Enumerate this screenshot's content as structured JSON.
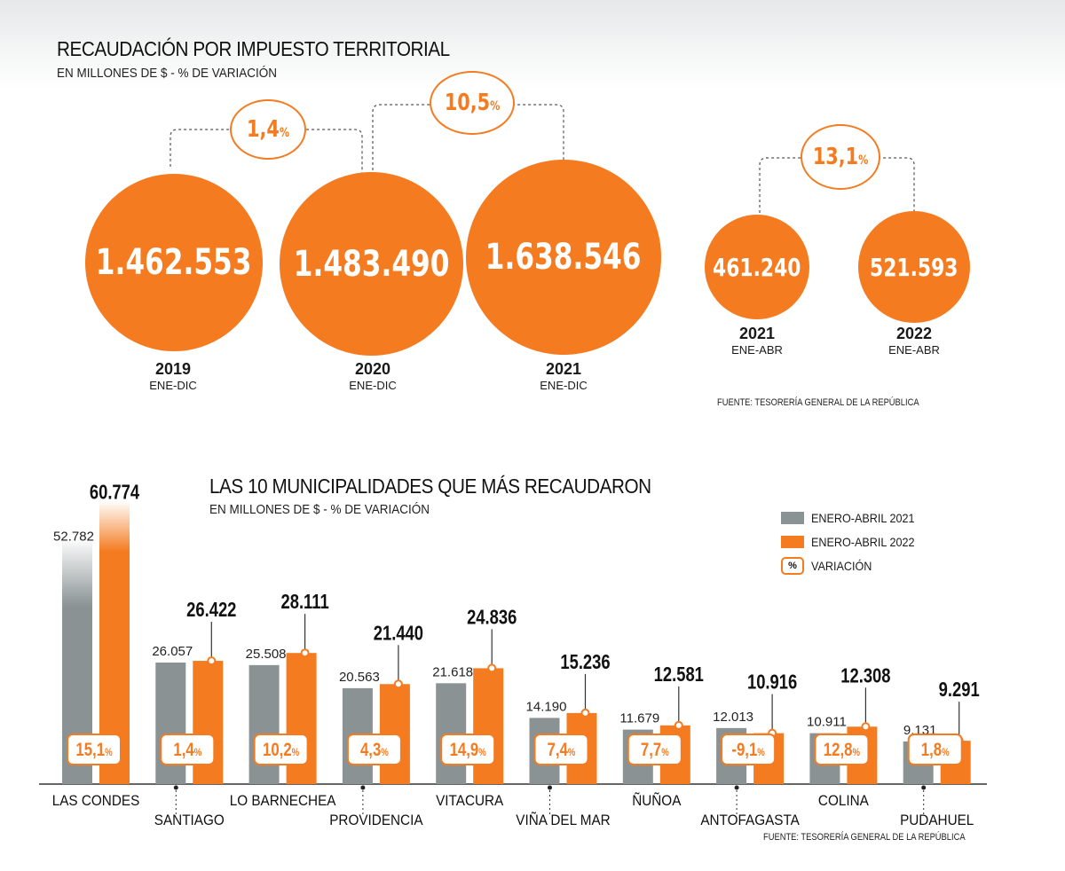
{
  "top": {
    "title": "RECAUDACIÓN POR IMPUESTO TERRITORIAL",
    "subtitle": "EN MILLONES DE $ - % DE VARIACIÓN",
    "bubbles": [
      {
        "value": "1.462.553",
        "year": "2019",
        "period": "ENE-DIC"
      },
      {
        "value": "1.483.490",
        "year": "2020",
        "period": "ENE-DIC"
      },
      {
        "value": "1.638.546",
        "year": "2021",
        "period": "ENE-DIC"
      },
      {
        "value": "461.240",
        "year": "2021",
        "period": "ENE-ABR"
      },
      {
        "value": "521.593",
        "year": "2022",
        "period": "ENE-ABR"
      }
    ],
    "variations": [
      "1,4",
      "10,5",
      "13,1"
    ],
    "pct_sign": "%",
    "source": "FUENTE: TESORERÍA GENERAL DE LA REPÚBLICA"
  },
  "bottom": {
    "title": "LAS 10 MUNICIPALIDADES QUE MÁS RECAUDARON",
    "subtitle": "EN MILLONES DE $ - % DE VARIACIÓN",
    "legend": {
      "s2021": "ENERO-ABRIL 2021",
      "s2022": "ENERO-ABRIL 2022",
      "pct_box": "%",
      "variation": "VARIACIÓN"
    },
    "source": "FUENTE: TESORERÍA GENERAL DE LA REPÚBLICA"
  },
  "colors": {
    "orange": "#f47b20",
    "gray": "#8a9294",
    "text": "#1a1a1a"
  },
  "chart_data": [
    {
      "type": "bubble",
      "title": "RECAUDACIÓN POR IMPUESTO TERRITORIAL",
      "subtitle": "EN MILLONES DE $ - % DE VARIACIÓN",
      "categories": [
        "2019 ENE-DIC",
        "2020 ENE-DIC",
        "2021 ENE-DIC",
        "2021 ENE-ABR",
        "2022 ENE-ABR"
      ],
      "values": [
        1462553,
        1483490,
        1638546,
        461240,
        521593
      ],
      "variations_pct": [
        1.4,
        10.5,
        13.1
      ]
    },
    {
      "type": "bar",
      "title": "LAS 10 MUNICIPALIDADES QUE MÁS RECAUDARON",
      "categories": [
        "LAS CONDES",
        "SANTIAGO",
        "LO BARNECHEA",
        "PROVIDENCIA",
        "VITACURA",
        "VIÑA DEL MAR",
        "ÑUÑOA",
        "ANTOFAGASTA",
        "COLINA",
        "PUDAHUEL"
      ],
      "series": [
        {
          "name": "ENERO-ABRIL 2021",
          "values": [
            52782,
            26057,
            25508,
            20563,
            21618,
            14190,
            11679,
            12013,
            10911,
            9131
          ],
          "labels": [
            "52.782",
            "26.057",
            "25.508",
            "20.563",
            "21.618",
            "14.190",
            "11.679",
            "12.013",
            "10.911",
            "9.131"
          ]
        },
        {
          "name": "ENERO-ABRIL 2022",
          "values": [
            60774,
            26422,
            28111,
            21440,
            24836,
            15236,
            12581,
            10916,
            12308,
            9291
          ],
          "labels": [
            "60.774",
            "26.422",
            "28.111",
            "21.440",
            "24.836",
            "15.236",
            "12.581",
            "10.916",
            "12.308",
            "9.291"
          ]
        }
      ],
      "variation": [
        "15,1",
        "1,4",
        "10,2",
        "4,3",
        "14,9",
        "7,4",
        "7,7",
        "-9,1",
        "12,8",
        "1,8"
      ],
      "ylim": [
        0,
        62000
      ],
      "grid": false,
      "legend": "top-right"
    }
  ]
}
